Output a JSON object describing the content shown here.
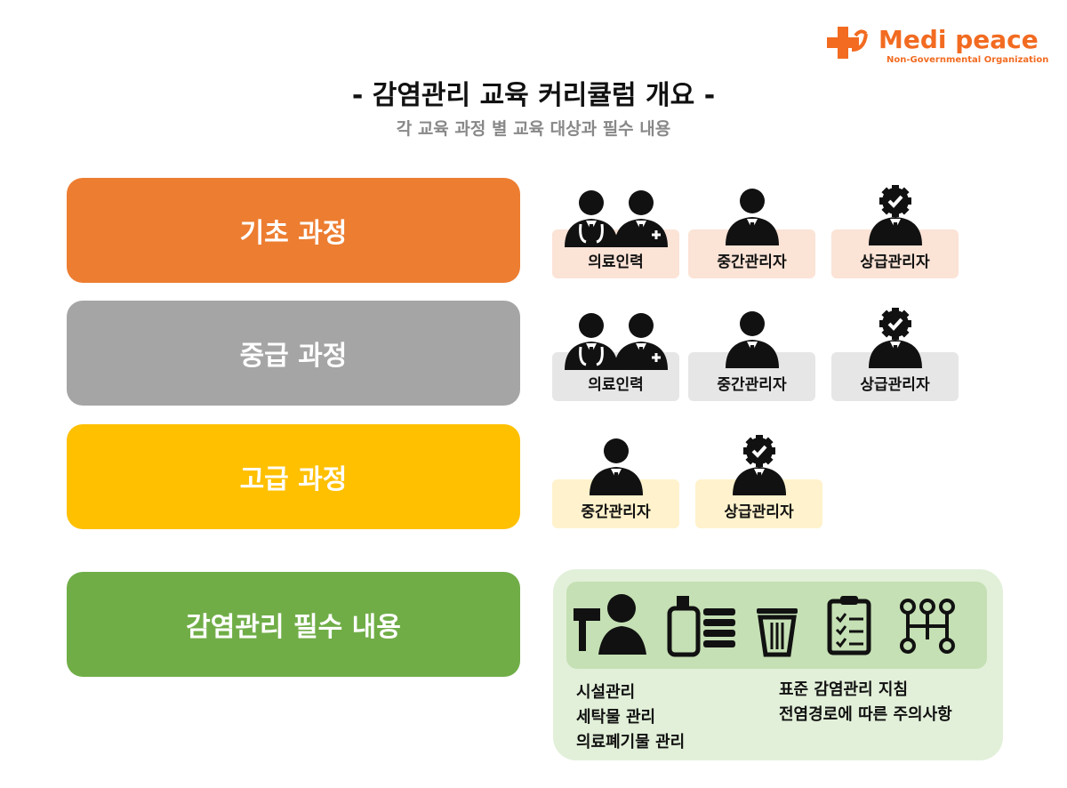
{
  "logo": {
    "name": "Medi peace",
    "subtitle": "Non-Governmental Organization"
  },
  "header": {
    "title": "- 감염관리 교육 커리큘럼 개요 -",
    "subtitle": "각 교육 과정 별 교육 대상과 필수 내용"
  },
  "courses": [
    {
      "label": "기초 과정",
      "targets": [
        "의료인력",
        "중간관리자",
        "상급관리자"
      ]
    },
    {
      "label": "중급 과정",
      "targets": [
        "의료인력",
        "중간관리자",
        "상급관리자"
      ]
    },
    {
      "label": "고급 과정",
      "targets": [
        "중간관리자",
        "상급관리자"
      ]
    }
  ],
  "essentials": {
    "label": "감염관리 필수 내용",
    "items_left": [
      "시설관리",
      "세탁물 관리",
      "의료폐기물 관리"
    ],
    "items_right": [
      "표준 감염관리 지침",
      "전염경로에 따른 주의사항"
    ]
  }
}
